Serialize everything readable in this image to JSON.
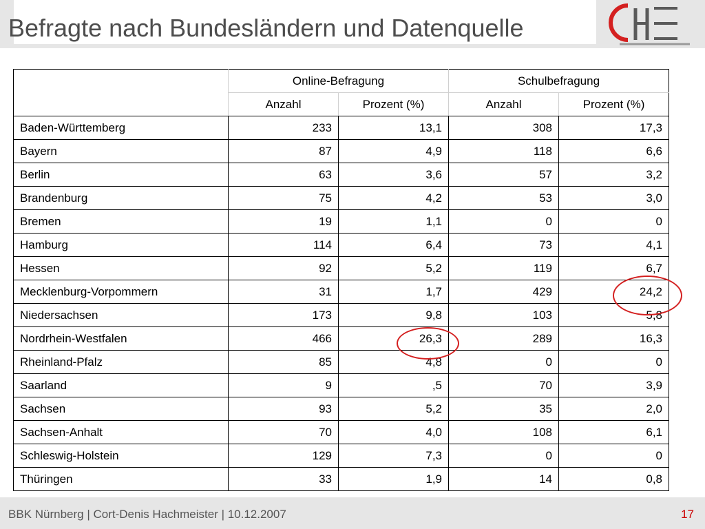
{
  "slide": {
    "title": "Befragte nach Bundesländern und Datenquelle",
    "logo_text": "CHE",
    "footer": "BBK Nürnberg | Cort-Denis Hachmeister | 10.12.2007",
    "page_number": "17"
  },
  "table": {
    "group_headers": [
      "Online-Befragung",
      "Schulbefragung"
    ],
    "sub_headers": [
      "Anzahl",
      "Prozent (%)",
      "Anzahl",
      "Prozent (%)"
    ],
    "rows": [
      [
        "Baden-Württemberg",
        "233",
        "13,1",
        "308",
        "17,3"
      ],
      [
        "Bayern",
        "87",
        "4,9",
        "118",
        "6,6"
      ],
      [
        "Berlin",
        "63",
        "3,6",
        "57",
        "3,2"
      ],
      [
        "Brandenburg",
        "75",
        "4,2",
        "53",
        "3,0"
      ],
      [
        "Bremen",
        "19",
        "1,1",
        "0",
        "0"
      ],
      [
        "Hamburg",
        "114",
        "6,4",
        "73",
        "4,1"
      ],
      [
        "Hessen",
        "92",
        "5,2",
        "119",
        "6,7"
      ],
      [
        "Mecklenburg-Vorpommern",
        "31",
        "1,7",
        "429",
        "24,2"
      ],
      [
        "Niedersachsen",
        "173",
        "9,8",
        "103",
        "5,8"
      ],
      [
        "Nordrhein-Westfalen",
        "466",
        "26,3",
        "289",
        "16,3"
      ],
      [
        "Rheinland-Pfalz",
        "85",
        "4,8",
        "0",
        "0"
      ],
      [
        "Saarland",
        "9",
        ",5",
        "70",
        "3,9"
      ],
      [
        "Sachsen",
        "93",
        "5,2",
        "35",
        "2,0"
      ],
      [
        "Sachsen-Anhalt",
        "70",
        "4,0",
        "108",
        "6,1"
      ],
      [
        "Schleswig-Holstein",
        "129",
        "7,3",
        "0",
        "0"
      ],
      [
        "Thüringen",
        "33",
        "1,9",
        "14",
        "0,8"
      ]
    ]
  },
  "colors": {
    "accent_red": "#d42020",
    "header_gray": "#e6e6e6",
    "title_gray": "#4d4d4d"
  }
}
